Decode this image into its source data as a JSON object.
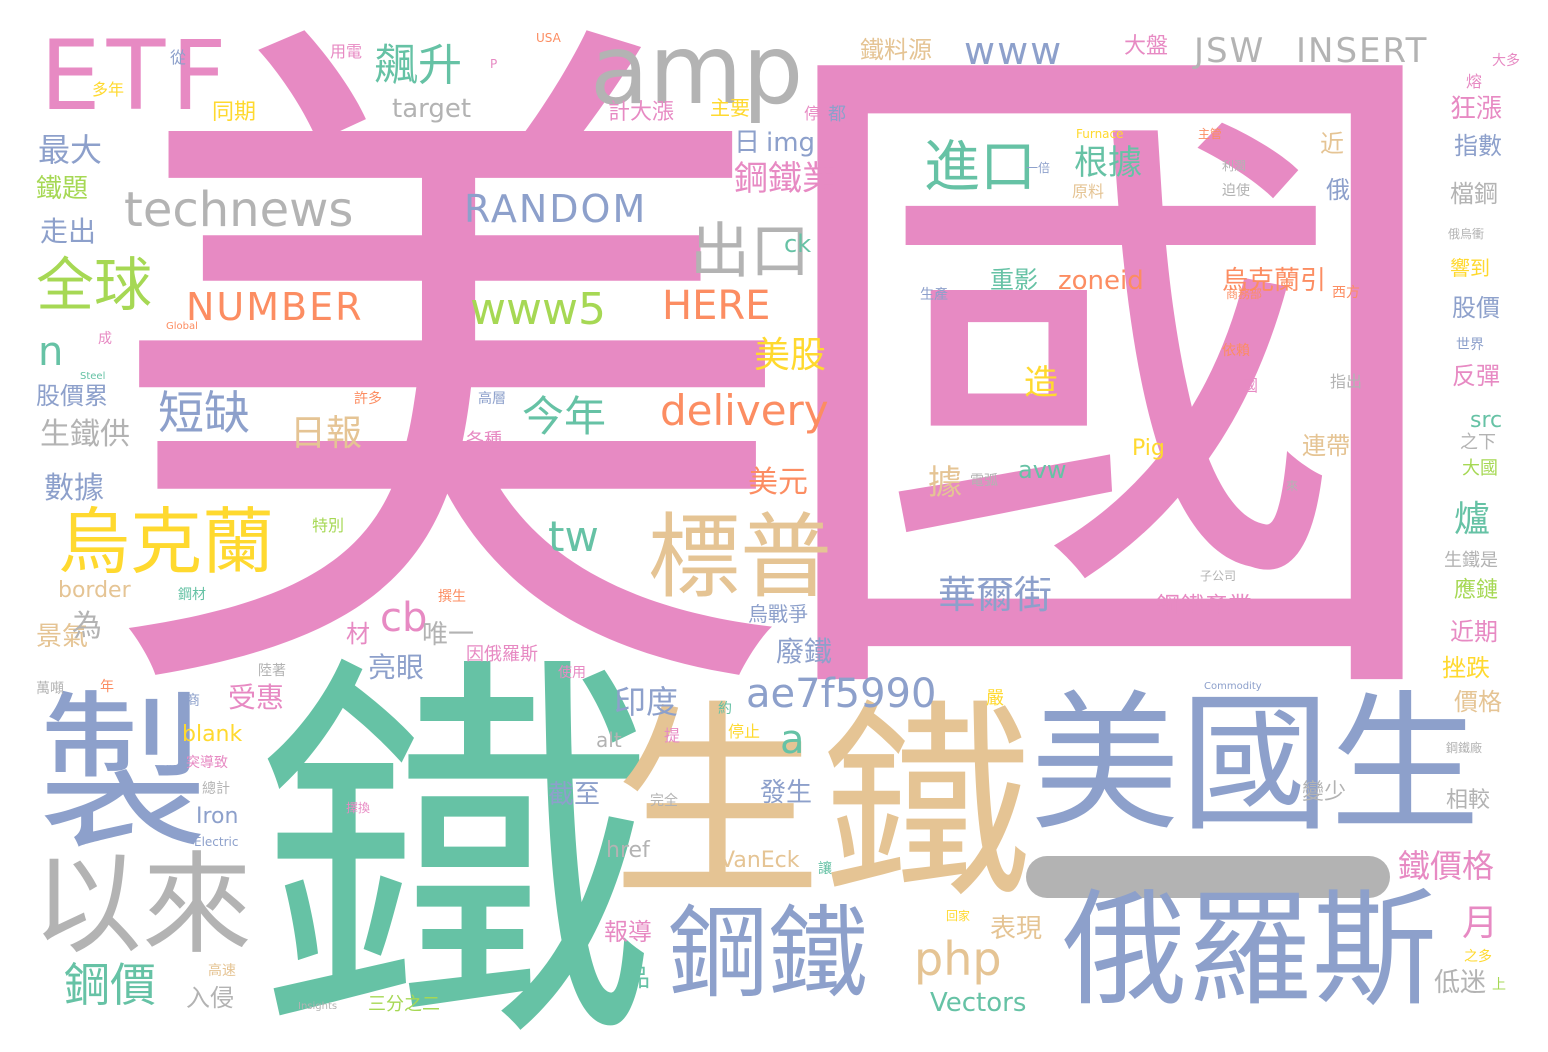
{
  "palette": {
    "pink": "#e78ac3",
    "green": "#66c2a5",
    "tan": "#e5c494",
    "blue": "#8da0cb",
    "gray": "#b3b3b3",
    "lime": "#a6d854",
    "orange": "#fc8d62",
    "yellow": "#ffd92f"
  },
  "words": [
    {
      "text": "美國",
      "color": "pink"
    },
    {
      "text": "鐵",
      "color": "green"
    },
    {
      "text": "生鐵",
      "color": "tan"
    },
    {
      "text": "美國生",
      "color": "blue"
    },
    {
      "text": "俄羅斯",
      "color": "blue"
    },
    {
      "text": "製",
      "color": "blue"
    },
    {
      "text": "以來",
      "color": "gray"
    },
    {
      "text": "鋼鐵",
      "color": "blue"
    },
    {
      "text": "ETF",
      "color": "pink"
    },
    {
      "text": "amp",
      "color": "gray"
    },
    {
      "text": "標普",
      "color": "tan"
    },
    {
      "text": "烏克蘭",
      "color": "yellow"
    },
    {
      "text": "全球",
      "color": "lime"
    },
    {
      "text": "technews",
      "color": "gray"
    },
    {
      "text": "www5",
      "color": "lime"
    },
    {
      "text": "HERE",
      "color": "orange"
    },
    {
      "text": "NUMBER",
      "color": "orange"
    },
    {
      "text": "RANDOM",
      "color": "blue"
    },
    {
      "text": "進口",
      "color": "green"
    },
    {
      "text": "出口",
      "color": "gray"
    },
    {
      "text": "飆升",
      "color": "green"
    },
    {
      "text": "delivery",
      "color": "orange"
    },
    {
      "text": "ae7f5990",
      "color": "blue"
    },
    {
      "text": "今年",
      "color": "green"
    },
    {
      "text": "短缺",
      "color": "blue"
    },
    {
      "text": "鋼價",
      "color": "green"
    },
    {
      "text": "php",
      "color": "tan"
    },
    {
      "text": "www",
      "color": "blue"
    },
    {
      "text": "JSW",
      "color": "gray"
    },
    {
      "text": "INSERT",
      "color": "gray"
    },
    {
      "text": "華爾街",
      "color": "blue"
    },
    {
      "text": "美股",
      "color": "yellow"
    },
    {
      "text": "日報",
      "color": "tan"
    },
    {
      "text": "鋼鐵業",
      "color": "pink"
    },
    {
      "text": "根據",
      "color": "green"
    },
    {
      "text": "tw",
      "color": "green"
    },
    {
      "text": "cb",
      "color": "pink"
    },
    {
      "text": "a",
      "color": "green"
    },
    {
      "text": "n",
      "color": "green"
    },
    {
      "text": "造",
      "color": "yellow"
    },
    {
      "text": "烏克蘭引",
      "color": "orange"
    },
    {
      "text": "zoneid",
      "color": "orange"
    },
    {
      "text": "鐵價格",
      "color": "pink"
    },
    {
      "text": "月",
      "color": "pink"
    },
    {
      "text": "生鐵供",
      "color": "gray"
    },
    {
      "text": "數據",
      "color": "blue"
    },
    {
      "text": "印度",
      "color": "blue"
    },
    {
      "text": "鋼鐵產業",
      "color": "pink"
    },
    {
      "text": "Vectors",
      "color": "green"
    },
    {
      "text": "美元",
      "color": "orange"
    },
    {
      "text": "Pig",
      "color": "yellow"
    },
    {
      "text": "廢鐵",
      "color": "blue"
    },
    {
      "text": "亮眼",
      "color": "blue"
    },
    {
      "text": "截至",
      "color": "blue"
    },
    {
      "text": "發生",
      "color": "blue"
    },
    {
      "text": "爐",
      "color": "green"
    },
    {
      "text": "據",
      "color": "tan"
    },
    {
      "text": "受惠",
      "color": "pink"
    },
    {
      "text": "最大",
      "color": "blue"
    },
    {
      "text": "走出",
      "color": "blue"
    },
    {
      "text": "鐵題",
      "color": "lime"
    },
    {
      "text": "股價累",
      "color": "blue"
    },
    {
      "text": "景氣",
      "color": "tan"
    },
    {
      "text": "為",
      "color": "gray"
    },
    {
      "text": "唯一",
      "color": "gray"
    },
    {
      "text": "材",
      "color": "pink"
    },
    {
      "text": "img",
      "color": "blue"
    },
    {
      "text": "日",
      "color": "blue"
    },
    {
      "text": "ck",
      "color": "green"
    },
    {
      "text": "avw",
      "color": "green"
    },
    {
      "text": "重影",
      "color": "green"
    },
    {
      "text": "target",
      "color": "gray"
    },
    {
      "text": "border",
      "color": "tan"
    },
    {
      "text": "blank",
      "color": "yellow"
    },
    {
      "text": "Iron",
      "color": "blue"
    },
    {
      "text": "href",
      "color": "gray"
    },
    {
      "text": "alt",
      "color": "gray"
    },
    {
      "text": "VanEck",
      "color": "tan"
    },
    {
      "text": "src",
      "color": "green"
    },
    {
      "text": "表現",
      "color": "tan"
    },
    {
      "text": "報導",
      "color": "pink"
    },
    {
      "text": "品",
      "color": "green"
    },
    {
      "text": "入侵",
      "color": "gray"
    },
    {
      "text": "三分之二",
      "color": "lime"
    },
    {
      "text": "低迷",
      "color": "gray"
    },
    {
      "text": "鋼價",
      "color": "green"
    },
    {
      "text": "狂漲",
      "color": "pink"
    },
    {
      "text": "指數",
      "color": "blue"
    },
    {
      "text": "檔鋼",
      "color": "gray"
    },
    {
      "text": "股價",
      "color": "blue"
    },
    {
      "text": "反彈",
      "color": "pink"
    },
    {
      "text": "近期",
      "color": "pink"
    },
    {
      "text": "挫跌",
      "color": "yellow"
    },
    {
      "text": "價格",
      "color": "tan"
    },
    {
      "text": "相較",
      "color": "gray"
    },
    {
      "text": "應鏈",
      "color": "lime"
    },
    {
      "text": "連帶",
      "color": "tan"
    },
    {
      "text": "變少",
      "color": "gray"
    },
    {
      "text": "近",
      "color": "tan"
    },
    {
      "text": "俄",
      "color": "blue"
    },
    {
      "text": "鐵料源",
      "color": "tan"
    },
    {
      "text": "大盤",
      "color": "pink"
    },
    {
      "text": "同期",
      "color": "yellow"
    },
    {
      "text": "計大漲",
      "color": "pink"
    },
    {
      "text": "主要",
      "color": "yellow"
    },
    {
      "text": "烏戰爭",
      "color": "blue"
    },
    {
      "text": "停止",
      "color": "yellow"
    },
    {
      "text": "大國",
      "color": "lime"
    },
    {
      "text": "之下",
      "color": "gray"
    },
    {
      "text": "生鐵是",
      "color": "gray"
    },
    {
      "text": "響到",
      "color": "yellow"
    },
    {
      "text": "從",
      "color": "blue"
    },
    {
      "text": "多年",
      "color": "yellow"
    },
    {
      "text": "用電",
      "color": "pink"
    },
    {
      "text": "都",
      "color": "blue"
    },
    {
      "text": "停",
      "color": "pink"
    },
    {
      "text": "世界",
      "color": "blue"
    },
    {
      "text": "西方",
      "color": "orange"
    },
    {
      "text": "商務部",
      "color": "orange"
    },
    {
      "text": "原料",
      "color": "tan"
    },
    {
      "text": "生產",
      "color": "blue"
    },
    {
      "text": "依賴",
      "color": "orange"
    },
    {
      "text": "指出",
      "color": "gray"
    },
    {
      "text": "來",
      "color": "gray"
    },
    {
      "text": "電弧",
      "color": "gray"
    },
    {
      "text": "各種",
      "color": "pink"
    },
    {
      "text": "許多",
      "color": "orange"
    },
    {
      "text": "高層",
      "color": "blue"
    },
    {
      "text": "因俄羅斯",
      "color": "pink"
    },
    {
      "text": "使用",
      "color": "pink"
    },
    {
      "text": "特別",
      "color": "lime"
    },
    {
      "text": "撰生",
      "color": "orange"
    },
    {
      "text": "鋼材",
      "color": "green"
    },
    {
      "text": "嚴",
      "color": "yellow"
    },
    {
      "text": "完全",
      "color": "gray"
    },
    {
      "text": "約",
      "color": "green"
    },
    {
      "text": "提",
      "color": "pink"
    },
    {
      "text": "高速",
      "color": "tan"
    },
    {
      "text": "之多",
      "color": "yellow"
    },
    {
      "text": "上",
      "color": "lime"
    },
    {
      "text": "USA",
      "color": "orange"
    },
    {
      "text": "P",
      "color": "pink"
    },
    {
      "text": "S",
      "color": "pink"
    },
    {
      "text": "Furnace",
      "color": "yellow"
    },
    {
      "text": "Global",
      "color": "orange"
    },
    {
      "text": "Steel",
      "color": "green"
    },
    {
      "text": "Commodity",
      "color": "blue"
    },
    {
      "text": "Electric",
      "color": "blue"
    },
    {
      "text": "Insights",
      "color": "gray"
    },
    {
      "text": "大多",
      "color": "pink"
    },
    {
      "text": "熔",
      "color": "pink"
    },
    {
      "text": "俄烏衝",
      "color": "gray"
    },
    {
      "text": "鋼鐵廠",
      "color": "gray"
    },
    {
      "text": "回家",
      "color": "yellow"
    },
    {
      "text": "子公司",
      "color": "gray"
    },
    {
      "text": "成",
      "color": "pink"
    },
    {
      "text": "年",
      "color": "orange"
    },
    {
      "text": "商",
      "color": "blue"
    },
    {
      "text": "陸著",
      "color": "gray"
    },
    {
      "text": "萬噸",
      "color": "gray"
    },
    {
      "text": "突導致",
      "color": "pink"
    },
    {
      "text": "總計",
      "color": "gray"
    },
    {
      "text": "擇換",
      "color": "pink"
    },
    {
      "text": "讓",
      "color": "green"
    },
    {
      "text": "國",
      "color": "pink"
    },
    {
      "text": "一倍",
      "color": "blue"
    },
    {
      "text": "利潤",
      "color": "gray"
    },
    {
      "text": "迫使",
      "color": "gray"
    },
    {
      "text": "主管",
      "color": "orange"
    }
  ]
}
